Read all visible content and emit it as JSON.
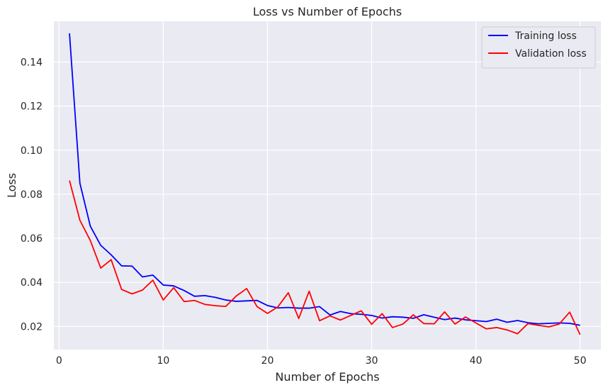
{
  "chart_data": {
    "type": "line",
    "title": "Loss vs Number of Epochs",
    "xlabel": "Number of Epochs",
    "ylabel": "Loss",
    "xlim": [
      -0.5,
      52
    ],
    "ylim": [
      0.0095,
      0.1585
    ],
    "xticks": [
      0,
      10,
      20,
      30,
      40,
      50
    ],
    "yticks": [
      0.02,
      0.04,
      0.06,
      0.08,
      0.1,
      0.12,
      0.14
    ],
    "ytick_labels": [
      "0.02",
      "0.04",
      "0.06",
      "0.08",
      "0.10",
      "0.12",
      "0.14"
    ],
    "grid": true,
    "background": "#eaeaf2",
    "legend_position": "top-right",
    "x": [
      1,
      2,
      3,
      4,
      5,
      6,
      7,
      8,
      9,
      10,
      11,
      12,
      13,
      14,
      15,
      16,
      17,
      18,
      19,
      20,
      21,
      22,
      23,
      24,
      25,
      26,
      27,
      28,
      29,
      30,
      31,
      32,
      33,
      34,
      35,
      36,
      37,
      38,
      39,
      40,
      41,
      42,
      43,
      44,
      45,
      46,
      47,
      48,
      49,
      50
    ],
    "series": [
      {
        "name": "Training loss",
        "color": "#0000ff",
        "values": [
          0.153,
          0.085,
          0.0655,
          0.0568,
          0.0525,
          0.0475,
          0.0474,
          0.0425,
          0.0433,
          0.0388,
          0.0384,
          0.0363,
          0.0337,
          0.034,
          0.0332,
          0.032,
          0.0314,
          0.0316,
          0.0318,
          0.0295,
          0.0284,
          0.0286,
          0.0283,
          0.0283,
          0.029,
          0.0252,
          0.0268,
          0.0258,
          0.0255,
          0.025,
          0.0238,
          0.0244,
          0.0242,
          0.0237,
          0.0253,
          0.0242,
          0.0231,
          0.0238,
          0.023,
          0.0226,
          0.0222,
          0.0233,
          0.0219,
          0.0227,
          0.0217,
          0.0212,
          0.0214,
          0.0216,
          0.0214,
          0.0205
        ]
      },
      {
        "name": "Validation loss",
        "color": "#ff0000",
        "values": [
          0.0862,
          0.0682,
          0.059,
          0.0465,
          0.0503,
          0.0368,
          0.0348,
          0.0365,
          0.041,
          0.032,
          0.0376,
          0.0313,
          0.0318,
          0.03,
          0.0294,
          0.0291,
          0.0338,
          0.0372,
          0.029,
          0.0259,
          0.0289,
          0.0353,
          0.0236,
          0.036,
          0.0226,
          0.0248,
          0.0229,
          0.025,
          0.0271,
          0.021,
          0.0258,
          0.0195,
          0.0211,
          0.0253,
          0.0213,
          0.0212,
          0.0266,
          0.0211,
          0.0243,
          0.0216,
          0.0189,
          0.0195,
          0.0184,
          0.0167,
          0.0213,
          0.0205,
          0.0198,
          0.0211,
          0.0265,
          0.0163
        ]
      }
    ]
  }
}
